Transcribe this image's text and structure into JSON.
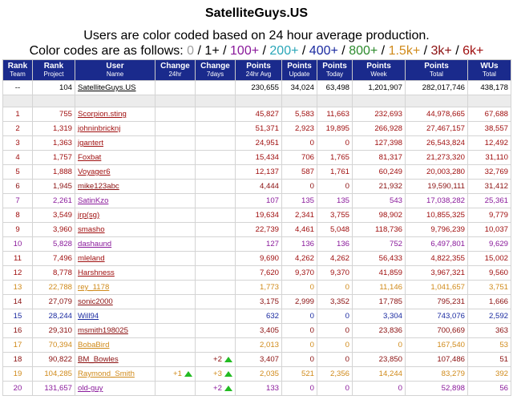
{
  "page": {
    "title": "SatelliteGuys.US",
    "subtitle": "Users are color coded based on 24 hour average production.",
    "codes_intro": "Color codes are as follows:",
    "color_codes": [
      {
        "label": "0",
        "color": "#a0a0a0"
      },
      {
        "label": "1+",
        "color": "#000000"
      },
      {
        "label": "100+",
        "color": "#8a1a9b"
      },
      {
        "label": "200+",
        "color": "#2aa6b8"
      },
      {
        "label": "400+",
        "color": "#1a2aa0"
      },
      {
        "label": "800+",
        "color": "#2c8a2c"
      },
      {
        "label": "1.5k+",
        "color": "#d08a1a"
      },
      {
        "label": "3k+",
        "color": "#8b1010"
      },
      {
        "label": "6k+",
        "color": "#a01010"
      }
    ],
    "separator": "/"
  },
  "table": {
    "headers": [
      {
        "label": "Rank",
        "sub": "Team"
      },
      {
        "label": "Rank",
        "sub": "Project"
      },
      {
        "label": "User",
        "sub": "Name"
      },
      {
        "label": "Change",
        "sub": "24hr"
      },
      {
        "label": "Change",
        "sub": "7days"
      },
      {
        "label": "Points",
        "sub": "24hr Avg"
      },
      {
        "label": "Points",
        "sub": "Update"
      },
      {
        "label": "Points",
        "sub": "Today"
      },
      {
        "label": "Points",
        "sub": "Week"
      },
      {
        "label": "Points",
        "sub": "Total"
      },
      {
        "label": "WUs",
        "sub": "Total"
      }
    ],
    "team_row": {
      "rank_team": "--",
      "rank_project": "104",
      "name": "SatelliteGuys.US",
      "change24": "",
      "change7": "",
      "avg": "230,655",
      "update": "34,024",
      "today": "63,498",
      "week": "1,201,907",
      "total": "282,017,746",
      "wus": "438,178"
    },
    "rows": [
      {
        "rank_team": "1",
        "rank_project": "755",
        "name": "Scorpion.sting",
        "change24": "",
        "change7": "",
        "avg": "45,827",
        "update": "5,583",
        "today": "11,663",
        "week": "232,693",
        "total": "44,978,665",
        "wus": "67,688",
        "color": "#a01010"
      },
      {
        "rank_team": "2",
        "rank_project": "1,319",
        "name": "johninbricknj",
        "change24": "",
        "change7": "",
        "avg": "51,371",
        "update": "2,923",
        "today": "19,895",
        "week": "266,928",
        "total": "27,467,157",
        "wus": "38,557",
        "color": "#a01010"
      },
      {
        "rank_team": "3",
        "rank_project": "1,363",
        "name": "jgantert",
        "change24": "",
        "change7": "",
        "avg": "24,951",
        "update": "0",
        "today": "0",
        "week": "127,398",
        "total": "26,543,824",
        "wus": "12,492",
        "color": "#a01010"
      },
      {
        "rank_team": "4",
        "rank_project": "1,757",
        "name": "Foxbat",
        "change24": "",
        "change7": "",
        "avg": "15,434",
        "update": "706",
        "today": "1,765",
        "week": "81,317",
        "total": "21,273,320",
        "wus": "31,110",
        "color": "#a01010"
      },
      {
        "rank_team": "5",
        "rank_project": "1,888",
        "name": "Voyager6",
        "change24": "",
        "change7": "",
        "avg": "12,137",
        "update": "587",
        "today": "1,761",
        "week": "60,249",
        "total": "20,003,280",
        "wus": "32,769",
        "color": "#a01010"
      },
      {
        "rank_team": "6",
        "rank_project": "1,945",
        "name": "mike123abc",
        "change24": "",
        "change7": "",
        "avg": "4,444",
        "update": "0",
        "today": "0",
        "week": "21,932",
        "total": "19,590,111",
        "wus": "31,412",
        "color": "#8b1010"
      },
      {
        "rank_team": "7",
        "rank_project": "2,261",
        "name": "SatinKzo",
        "change24": "",
        "change7": "",
        "avg": "107",
        "update": "135",
        "today": "135",
        "week": "543",
        "total": "17,038,282",
        "wus": "25,361",
        "color": "#8a1a9b"
      },
      {
        "rank_team": "8",
        "rank_project": "3,549",
        "name": "jrp(sg)",
        "change24": "",
        "change7": "",
        "avg": "19,634",
        "update": "2,341",
        "today": "3,755",
        "week": "98,902",
        "total": "10,855,325",
        "wus": "9,779",
        "color": "#a01010"
      },
      {
        "rank_team": "9",
        "rank_project": "3,960",
        "name": "smasho",
        "change24": "",
        "change7": "",
        "avg": "22,739",
        "update": "4,461",
        "today": "5,048",
        "week": "118,736",
        "total": "9,796,239",
        "wus": "10,037",
        "color": "#a01010"
      },
      {
        "rank_team": "10",
        "rank_project": "5,828",
        "name": "dashaund",
        "change24": "",
        "change7": "",
        "avg": "127",
        "update": "136",
        "today": "136",
        "week": "752",
        "total": "6,497,801",
        "wus": "9,629",
        "color": "#8a1a9b"
      },
      {
        "rank_team": "11",
        "rank_project": "7,496",
        "name": "mleland",
        "change24": "",
        "change7": "",
        "avg": "9,690",
        "update": "4,262",
        "today": "4,262",
        "week": "56,433",
        "total": "4,822,355",
        "wus": "15,002",
        "color": "#a01010"
      },
      {
        "rank_team": "12",
        "rank_project": "8,778",
        "name": "Harshness",
        "change24": "",
        "change7": "",
        "avg": "7,620",
        "update": "9,370",
        "today": "9,370",
        "week": "41,859",
        "total": "3,967,321",
        "wus": "9,560",
        "color": "#a01010"
      },
      {
        "rank_team": "13",
        "rank_project": "22,788",
        "name": "rey_1178",
        "change24": "",
        "change7": "",
        "avg": "1,773",
        "update": "0",
        "today": "0",
        "week": "11,146",
        "total": "1,041,657",
        "wus": "3,751",
        "color": "#d08a1a"
      },
      {
        "rank_team": "14",
        "rank_project": "27,079",
        "name": "sonic2000",
        "change24": "",
        "change7": "",
        "avg": "3,175",
        "update": "2,999",
        "today": "3,352",
        "week": "17,785",
        "total": "795,231",
        "wus": "1,666",
        "color": "#8b1010"
      },
      {
        "rank_team": "15",
        "rank_project": "28,244",
        "name": "Will94",
        "change24": "",
        "change7": "",
        "avg": "632",
        "update": "0",
        "today": "0",
        "week": "3,304",
        "total": "743,076",
        "wus": "2,592",
        "color": "#1a2aa0"
      },
      {
        "rank_team": "16",
        "rank_project": "29,310",
        "name": "msmith198025",
        "change24": "",
        "change7": "",
        "avg": "3,405",
        "update": "0",
        "today": "0",
        "week": "23,836",
        "total": "700,669",
        "wus": "363",
        "color": "#8b1010"
      },
      {
        "rank_team": "17",
        "rank_project": "70,394",
        "name": "BobaBird",
        "change24": "",
        "change7": "",
        "avg": "2,013",
        "update": "0",
        "today": "0",
        "week": "0",
        "total": "167,540",
        "wus": "53",
        "color": "#d08a1a"
      },
      {
        "rank_team": "18",
        "rank_project": "90,822",
        "name": "BM_Bowles",
        "change24": "",
        "change7": "+2",
        "avg": "3,407",
        "update": "0",
        "today": "0",
        "week": "23,850",
        "total": "107,486",
        "wus": "51",
        "color": "#8b1010"
      },
      {
        "rank_team": "19",
        "rank_project": "104,285",
        "name": "Raymond_Smith",
        "change24": "+1",
        "change7": "+3",
        "avg": "2,035",
        "update": "521",
        "today": "2,356",
        "week": "14,244",
        "total": "83,279",
        "wus": "392",
        "color": "#d08a1a"
      },
      {
        "rank_team": "20",
        "rank_project": "131,657",
        "name": "old-guy",
        "change24": "",
        "change7": "+2",
        "avg": "133",
        "update": "0",
        "today": "0",
        "week": "0",
        "total": "52,898",
        "wus": "56",
        "color": "#8a1a9b"
      }
    ]
  }
}
